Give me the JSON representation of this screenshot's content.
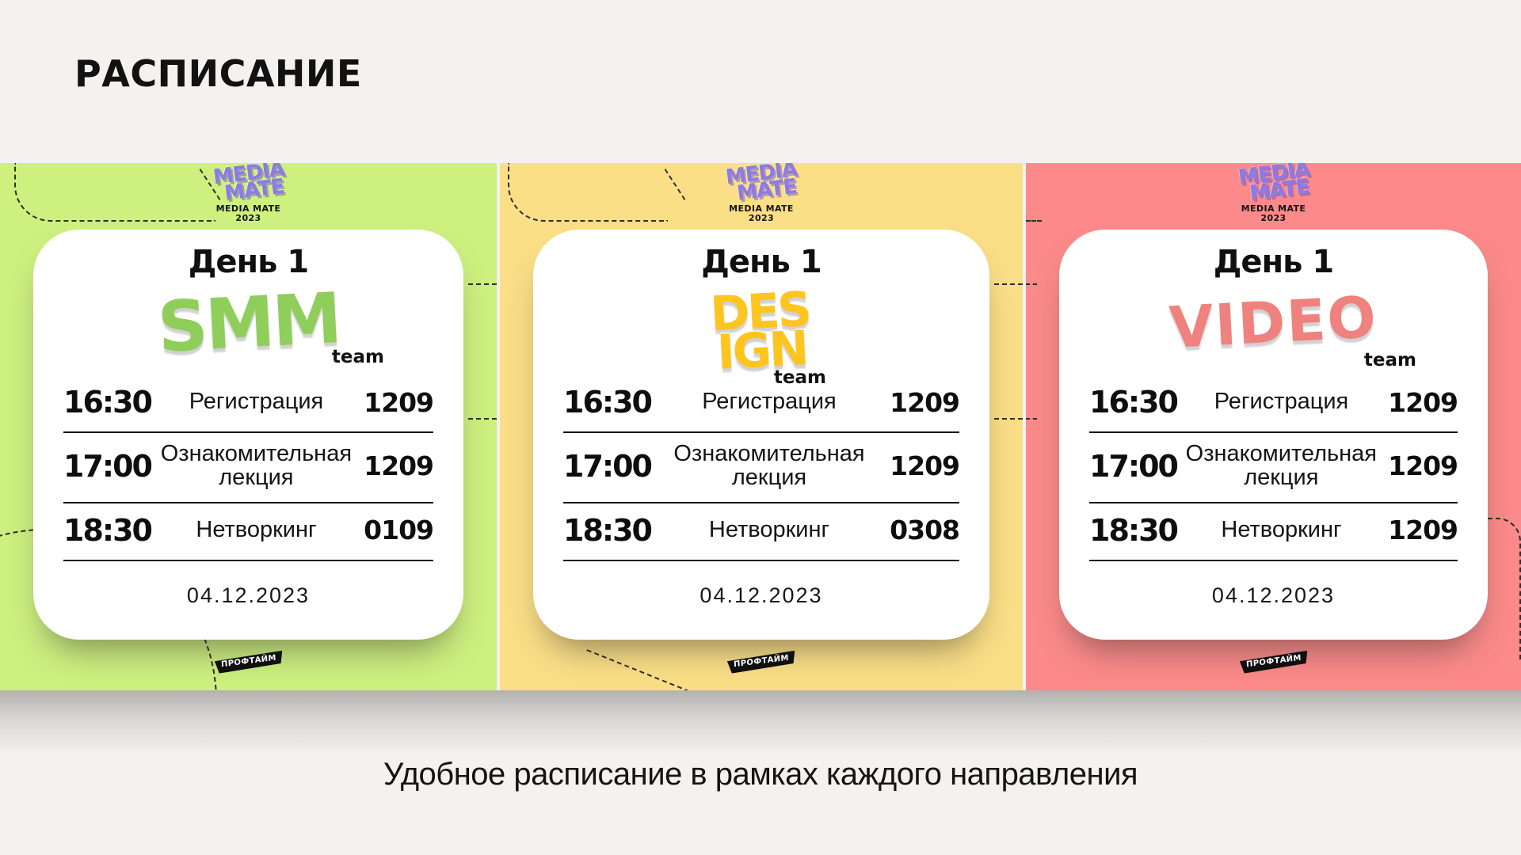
{
  "page": {
    "title": "РАСПИСАНИЕ",
    "caption": "Удобное расписание в рамках каждого направления"
  },
  "brand": {
    "bubble_line1": "MEDIA",
    "bubble_line2": "MATE",
    "bubble_color": "#8d7be4",
    "caption_line1": "MEDIA MATE",
    "caption_line2": "2023",
    "footer_tag": "ПРОФТАЙМ"
  },
  "colors": {
    "page_bg": "#f3f2f0",
    "panel_bg": "#ffffff",
    "divider": "#161616",
    "smm_bg": "#cdf07f",
    "design_bg": "#fbdf87",
    "video_bg": "#fc8a8a"
  },
  "cards": [
    {
      "bg": "#cdf07f",
      "day_title": "День 1",
      "team_lines": [
        "SMM"
      ],
      "team_label": "team",
      "team_color": "#8fce5a",
      "date": "04.12.2023",
      "rows": [
        {
          "time": "16:30",
          "activity": "Регистрация",
          "room": "1209"
        },
        {
          "time": "17:00",
          "activity": "Ознакомительная лекция",
          "room": "1209"
        },
        {
          "time": "18:30",
          "activity": "Нетворкинг",
          "room": "0109"
        }
      ]
    },
    {
      "bg": "#fbdf87",
      "day_title": "День 1",
      "team_lines": [
        "DES",
        "IGN"
      ],
      "team_label": "team",
      "team_color": "#fdc51d",
      "date": "04.12.2023",
      "rows": [
        {
          "time": "16:30",
          "activity": "Регистрация",
          "room": "1209"
        },
        {
          "time": "17:00",
          "activity": "Ознакомительная лекция",
          "room": "1209"
        },
        {
          "time": "18:30",
          "activity": "Нетворкинг",
          "room": "0308"
        }
      ]
    },
    {
      "bg": "#fc8a8a",
      "day_title": "День 1",
      "team_lines": [
        "VIDEO"
      ],
      "team_label": "team",
      "team_color": "#ef817e",
      "date": "04.12.2023",
      "rows": [
        {
          "time": "16:30",
          "activity": "Регистрация",
          "room": "1209"
        },
        {
          "time": "17:00",
          "activity": "Ознакомительная лекция",
          "room": "1209"
        },
        {
          "time": "18:30",
          "activity": "Нетворкинг",
          "room": "1209"
        }
      ]
    }
  ]
}
